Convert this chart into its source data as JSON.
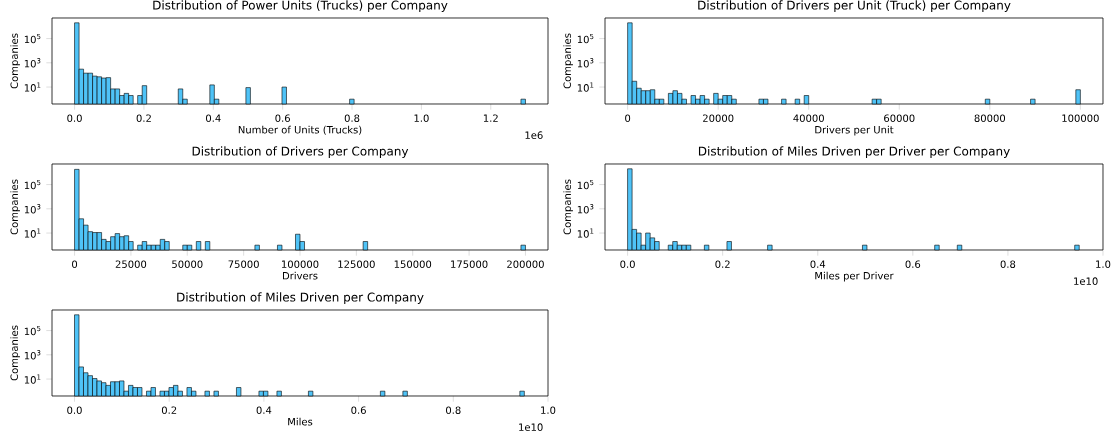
{
  "chart_data": [
    {
      "type": "histogram",
      "title": "Distribution of Power Units (Trucks) per Company",
      "xlabel": "Number of Units (Trucks)",
      "ylabel": "Companies",
      "color": "#4fc3f7",
      "log": "y",
      "bins": [
        0,
        0.013,
        0.026,
        0.039,
        0.052,
        0.065,
        0.078,
        0.091,
        0.104,
        0.117,
        0.13,
        0.143,
        0.156,
        0.169,
        0.182,
        0.195,
        0.208,
        0.299,
        0.312,
        0.325,
        0.39,
        0.403,
        0.416,
        0.494,
        0.507,
        0.598,
        0.611,
        0.793,
        0.806,
        1.287,
        1.3
      ],
      "values": [
        2000000,
        300,
        140,
        140,
        80,
        70,
        55,
        60,
        7,
        7,
        2,
        3,
        2,
        null,
        2,
        13,
        null,
        7,
        1,
        null,
        15,
        1,
        null,
        9,
        null,
        10,
        null,
        1,
        null,
        1
      ],
      "xlim": [
        -0.065,
        1.365
      ],
      "xticks": [
        {
          "value": 0,
          "label": "0.0"
        },
        {
          "value": 0.2,
          "label": "0.2"
        },
        {
          "value": 0.4,
          "label": "0.4"
        },
        {
          "value": 0.6,
          "label": "0.6"
        },
        {
          "value": 0.8,
          "label": "0.8"
        },
        {
          "value": 1.0,
          "label": "1.0"
        },
        {
          "value": 1.2,
          "label": "1.2"
        }
      ],
      "ylim": [
        0.4,
        5000000
      ],
      "yticks": [
        {
          "value": 10,
          "label": "10$^{1}$"
        },
        {
          "value": 1000,
          "label": "10$^{3}$"
        },
        {
          "value": 100000,
          "label": "10$^{5}$"
        }
      ],
      "annotations": [
        "1e6"
      ]
    },
    {
      "type": "histogram",
      "title": "Distribution of Drivers per Unit (Truck) per Company",
      "xlabel": "Drivers per Unit",
      "ylabel": "Companies",
      "color": "#4fc3f7",
      "log": "y",
      "bins": [
        0,
        1000,
        2000,
        3000,
        4000,
        5000,
        6000,
        7000,
        8000,
        9000,
        10000,
        11000,
        12000,
        13000,
        14000,
        15000,
        16000,
        17000,
        18000,
        19000,
        20000,
        21000,
        22000,
        23000,
        24000,
        29000,
        30000,
        31000,
        34000,
        35000,
        37000,
        38000,
        39000,
        40000,
        54000,
        55000,
        56000,
        79000,
        80000,
        89000,
        90000,
        99000,
        100000
      ],
      "values": [
        2000000,
        30,
        8,
        5,
        5,
        6,
        1,
        1,
        null,
        3,
        5,
        3,
        1,
        null,
        2,
        1,
        2,
        1,
        null,
        3,
        1,
        2,
        2,
        1,
        null,
        1,
        1,
        null,
        1,
        null,
        1,
        null,
        2,
        null,
        1,
        1,
        null,
        1,
        null,
        1,
        null,
        6
      ],
      "xlim": [
        -5000,
        105000
      ],
      "xticks": [
        0,
        20000,
        40000,
        60000,
        80000,
        100000
      ],
      "ylim": [
        0.4,
        5000000
      ],
      "yticks": [
        {
          "value": 10,
          "label": "10$^{1}$"
        },
        {
          "value": 1000,
          "label": "10$^{3}$"
        },
        {
          "value": 100000,
          "label": "10$^{5}$"
        }
      ]
    },
    {
      "type": "histogram",
      "title": "Distribution of Drivers per Company",
      "xlabel": "Drivers",
      "ylabel": "Companies",
      "color": "#4fc3f7",
      "log": "y",
      "bins": [
        0,
        2000,
        4000,
        6000,
        8000,
        10000,
        12000,
        14000,
        16000,
        18000,
        20000,
        22000,
        24000,
        26000,
        28000,
        30000,
        32000,
        34000,
        36000,
        38000,
        40000,
        42000,
        48000,
        50000,
        52000,
        54000,
        56000,
        58000,
        60000,
        80000,
        82000,
        90000,
        92000,
        98000,
        100000,
        102000,
        128000,
        130000,
        198000,
        200000
      ],
      "values": [
        1800000,
        150,
        45,
        13,
        11,
        11,
        3,
        2,
        5,
        9,
        5,
        6,
        2,
        null,
        1,
        2,
        1,
        1,
        1,
        3,
        2,
        null,
        1,
        1,
        null,
        2,
        null,
        2,
        null,
        1,
        null,
        1,
        null,
        8,
        2,
        null,
        2,
        null,
        1
      ],
      "xlim": [
        -10000,
        210000
      ],
      "xticks": [
        0,
        25000,
        50000,
        75000,
        100000,
        125000,
        150000,
        175000,
        200000
      ],
      "ylim": [
        0.4,
        5000000
      ],
      "yticks": [
        {
          "value": 10,
          "label": "10$^{1}$"
        },
        {
          "value": 1000,
          "label": "10$^{3}$"
        },
        {
          "value": 100000,
          "label": "10$^{5}$"
        }
      ]
    },
    {
      "type": "histogram",
      "title": "Distribution of Miles Driven per Driver per Company",
      "xlabel": "Miles per Driver",
      "ylabel": "Companies",
      "color": "#4fc3f7",
      "log": "y",
      "bins": [
        0,
        0.0095,
        0.019,
        0.0285,
        0.038,
        0.0475,
        0.057,
        0.0665,
        0.0855,
        0.095,
        0.1045,
        0.114,
        0.1235,
        0.133,
        0.1615,
        0.171,
        0.209,
        0.2185,
        0.2945,
        0.304,
        0.494,
        0.5035,
        0.646,
        0.6555,
        0.6935,
        0.703,
        0.9405,
        0.95
      ],
      "values": [
        2000000,
        20,
        10,
        1,
        10,
        4,
        2,
        null,
        1,
        2,
        1,
        1,
        1,
        null,
        1,
        null,
        2,
        null,
        1,
        null,
        1,
        null,
        1,
        null,
        1,
        null,
        1
      ],
      "xlim": [
        -0.0475,
        1.0
      ],
      "xticks": [
        {
          "value": 0,
          "label": "0.0"
        },
        {
          "value": 0.2,
          "label": "0.2"
        },
        {
          "value": 0.4,
          "label": "0.4"
        },
        {
          "value": 0.6,
          "label": "0.6"
        },
        {
          "value": 0.8,
          "label": "0.8"
        },
        {
          "value": 1.0,
          "label": "1.0"
        }
      ],
      "ylim": [
        0.4,
        5000000
      ],
      "yticks": [
        {
          "value": 10,
          "label": "10$^{1}$"
        },
        {
          "value": 1000,
          "label": "10$^{3}$"
        },
        {
          "value": 100000,
          "label": "10$^{5}$"
        }
      ],
      "annotations": [
        "1e10"
      ]
    },
    {
      "type": "histogram",
      "title": "Distribution of Miles Driven per Company",
      "xlabel": "Miles",
      "ylabel": "Companies",
      "color": "#4fc3f7",
      "log": "y",
      "bins": [
        0,
        0.0095,
        0.019,
        0.0285,
        0.038,
        0.0475,
        0.057,
        0.0665,
        0.076,
        0.0855,
        0.095,
        0.1045,
        0.114,
        0.1235,
        0.133,
        0.1425,
        0.152,
        0.1615,
        0.171,
        0.1805,
        0.19,
        0.1995,
        0.209,
        0.2185,
        0.228,
        0.2375,
        0.247,
        0.2565,
        0.2755,
        0.285,
        0.2945,
        0.304,
        0.342,
        0.3515,
        0.3895,
        0.399,
        0.4085,
        0.4275,
        0.437,
        0.494,
        0.5035,
        0.646,
        0.6555,
        0.6935,
        0.703,
        0.9405,
        0.95
      ],
      "values": [
        2000000,
        100,
        33,
        19,
        11,
        7,
        5,
        3,
        6,
        6,
        7,
        1,
        3,
        2,
        2,
        null,
        1,
        2,
        null,
        1,
        1,
        2,
        3,
        1,
        null,
        2,
        1,
        null,
        1,
        null,
        1,
        null,
        2,
        null,
        1,
        1,
        null,
        1,
        null,
        1,
        null,
        1,
        null,
        1,
        null,
        1
      ],
      "xlim": [
        -0.0475,
        1.0
      ],
      "xticks": [
        {
          "value": 0,
          "label": "0.0"
        },
        {
          "value": 0.2,
          "label": "0.2"
        },
        {
          "value": 0.4,
          "label": "0.4"
        },
        {
          "value": 0.6,
          "label": "0.6"
        },
        {
          "value": 0.8,
          "label": "0.8"
        },
        {
          "value": 1.0,
          "label": "1.0"
        }
      ],
      "ylim": [
        0.4,
        5000000
      ],
      "yticks": [
        {
          "value": 10,
          "label": "10$^{1}$"
        },
        {
          "value": 1000,
          "label": "10$^{3}$"
        },
        {
          "value": 100000,
          "label": "10$^{5}$"
        }
      ],
      "annotations": [
        "1e10"
      ]
    }
  ]
}
